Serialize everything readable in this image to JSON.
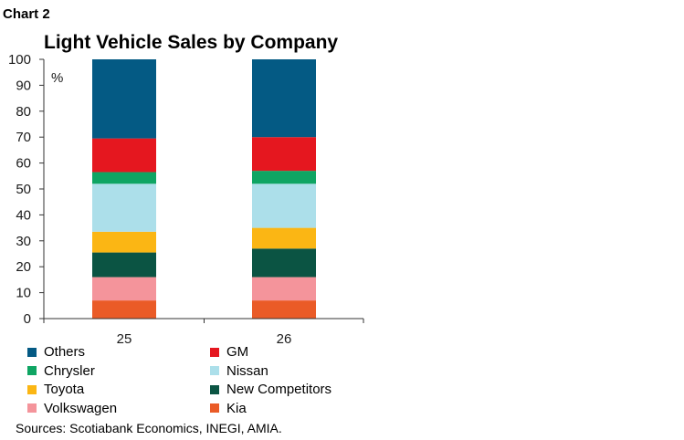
{
  "chart_number": "Chart 2",
  "chart_data": {
    "type": "bar",
    "stacked": true,
    "title": "Light Vehicle Sales by Company",
    "unit_label": "%",
    "categories": [
      "25",
      "26"
    ],
    "ylim": [
      0,
      100
    ],
    "yticks": [
      0,
      10,
      20,
      30,
      40,
      50,
      60,
      70,
      80,
      90,
      100
    ],
    "series": [
      {
        "name": "Kia",
        "color": "#ea5b27",
        "values": [
          7,
          7
        ]
      },
      {
        "name": "Volkswagen",
        "color": "#f4949b",
        "values": [
          9,
          9
        ]
      },
      {
        "name": "New Competitors",
        "color": "#0b5443",
        "values": [
          9.5,
          11
        ]
      },
      {
        "name": "Toyota",
        "color": "#fbb614",
        "values": [
          8,
          8
        ]
      },
      {
        "name": "Nissan",
        "color": "#acdfea",
        "values": [
          18.5,
          17
        ]
      },
      {
        "name": "Chrysler",
        "color": "#0fa563",
        "values": [
          4.5,
          5
        ]
      },
      {
        "name": "GM",
        "color": "#e5171f",
        "values": [
          13,
          13
        ]
      },
      {
        "name": "Others",
        "color": "#045a84",
        "values": [
          30.5,
          30
        ]
      }
    ],
    "legend_order": [
      "Others",
      "GM",
      "Chrysler",
      "Nissan",
      "Toyota",
      "New Competitors",
      "Volkswagen",
      "Kia"
    ]
  },
  "source": "Sources: Scotiabank Economics, INEGI, AMIA."
}
